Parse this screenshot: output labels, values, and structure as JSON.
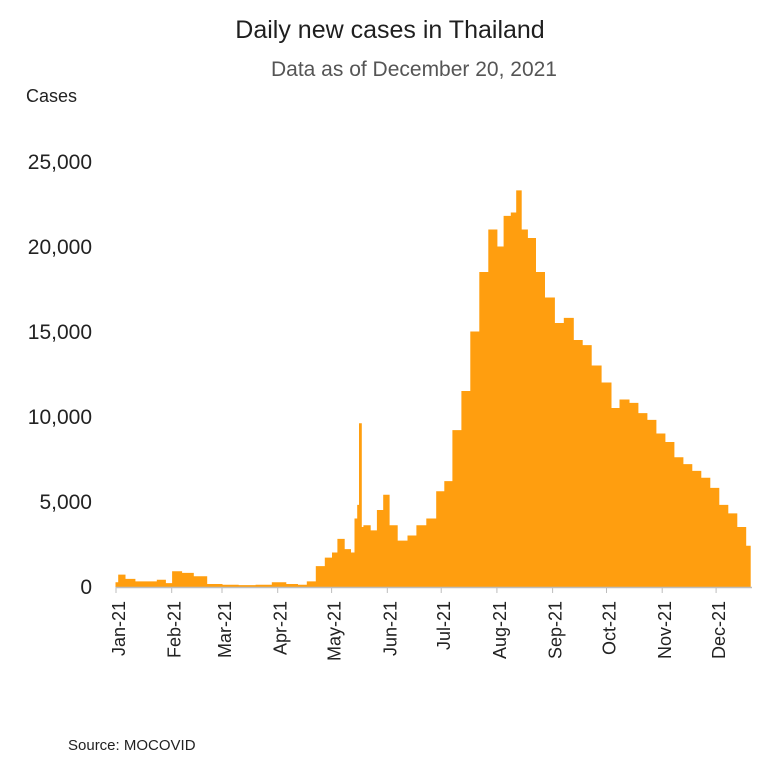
{
  "chart_data": {
    "type": "area",
    "title": "Daily new cases in Thailand",
    "subtitle": "Data as of December 20, 2021",
    "ylabel": "Cases",
    "xlabel": "",
    "ylim": [
      0,
      25000
    ],
    "yticks": [
      0,
      5000,
      10000,
      15000,
      20000,
      25000
    ],
    "ytick_labels": [
      "0",
      "5,000",
      "10,000",
      "15,000",
      "20,000",
      "25,000"
    ],
    "xtick_labels": [
      "Jan-21",
      "Feb-21",
      "Mar-21",
      "Apr-21",
      "May-21",
      "Jun-21",
      "Jul-21",
      "Aug-21",
      "Sep-21",
      "Oct-21",
      "Nov-21",
      "Dec-21"
    ],
    "x_start": "2021-01-01",
    "x_end": "2021-12-20",
    "grid": false,
    "legend": "none",
    "color": "#FF9E0F",
    "series": [
      {
        "x": [
          "2021-01-01",
          "2021-01-04",
          "2021-01-08",
          "2021-01-15",
          "2021-01-22",
          "2021-01-26",
          "2021-01-31",
          "2021-02-03",
          "2021-02-10",
          "2021-02-16",
          "2021-02-25",
          "2021-03-05",
          "2021-03-15",
          "2021-03-25",
          "2021-04-02",
          "2021-04-09",
          "2021-04-15",
          "2021-04-20",
          "2021-04-25",
          "2021-04-30",
          "2021-05-03",
          "2021-05-06",
          "2021-05-10",
          "2021-05-13",
          "2021-05-15",
          "2021-05-16",
          "2021-05-17",
          "2021-05-18",
          "2021-05-20",
          "2021-05-25",
          "2021-05-28",
          "2021-06-01",
          "2021-06-03",
          "2021-06-10",
          "2021-06-15",
          "2021-06-20",
          "2021-06-26",
          "2021-07-01",
          "2021-07-05",
          "2021-07-10",
          "2021-07-15",
          "2021-07-20",
          "2021-07-25",
          "2021-07-30",
          "2021-08-03",
          "2021-08-07",
          "2021-08-11",
          "2021-08-13",
          "2021-08-16",
          "2021-08-20",
          "2021-08-25",
          "2021-08-30",
          "2021-09-05",
          "2021-09-10",
          "2021-09-15",
          "2021-09-20",
          "2021-09-25",
          "2021-10-01",
          "2021-10-06",
          "2021-10-11",
          "2021-10-16",
          "2021-10-21",
          "2021-10-26",
          "2021-10-31",
          "2021-11-05",
          "2021-11-10",
          "2021-11-15",
          "2021-11-20",
          "2021-11-25",
          "2021-11-30",
          "2021-12-05",
          "2021-12-10",
          "2021-12-15",
          "2021-12-20"
        ],
        "values": [
          250,
          700,
          450,
          300,
          300,
          400,
          200,
          900,
          800,
          600,
          150,
          100,
          80,
          100,
          250,
          150,
          100,
          300,
          1200,
          1700,
          2000,
          2800,
          2200,
          2000,
          4000,
          4800,
          9600,
          3500,
          3600,
          3300,
          4500,
          5400,
          3600,
          2700,
          3000,
          3600,
          4000,
          5600,
          6200,
          9200,
          11500,
          15000,
          18500,
          21000,
          20000,
          21800,
          22000,
          23300,
          21000,
          20500,
          18500,
          17000,
          15500,
          15800,
          14500,
          14200,
          13000,
          12000,
          10500,
          11000,
          10800,
          10200,
          9800,
          9000,
          8500,
          7600,
          7200,
          6800,
          6400,
          5800,
          4800,
          4300,
          3500,
          2400
        ]
      }
    ],
    "source": "Source: MOCOVID"
  }
}
